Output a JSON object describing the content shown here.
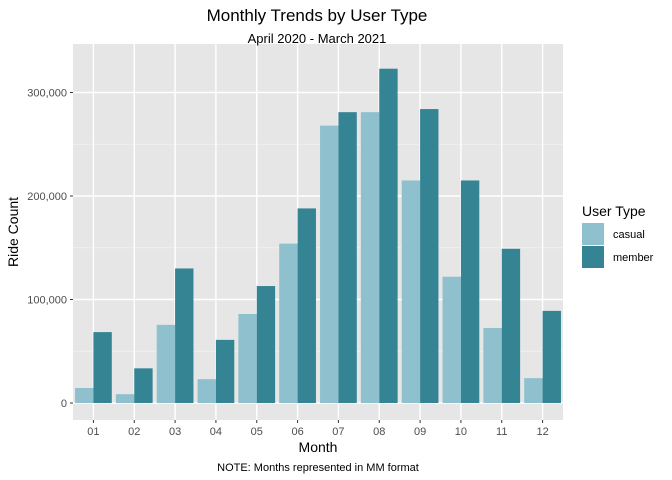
{
  "chart_data": {
    "type": "bar",
    "title": "Monthly Trends by User Type",
    "subtitle": "April 2020 - March 2021",
    "xlabel": "Month",
    "ylabel": "Ride Count",
    "caption": "NOTE: Months represented in MM format",
    "categories": [
      "01",
      "02",
      "03",
      "04",
      "05",
      "06",
      "07",
      "08",
      "09",
      "10",
      "11",
      "12"
    ],
    "ylim": [
      0,
      340000
    ],
    "yticks": [
      0,
      100000,
      200000,
      300000
    ],
    "ytick_labels": [
      "0",
      "100,000",
      "200,000",
      "300,000"
    ],
    "grid": true,
    "legend": {
      "title": "User Type",
      "position": "right"
    },
    "series": [
      {
        "name": "casual",
        "color": "#8ec0cd",
        "values": [
          14500,
          8500,
          75500,
          23000,
          86000,
          154000,
          268000,
          281000,
          215000,
          122000,
          72500,
          24000
        ]
      },
      {
        "name": "member",
        "color": "#358493",
        "values": [
          68500,
          33500,
          130000,
          61000,
          113000,
          188000,
          281000,
          323000,
          284000,
          215000,
          149000,
          89000
        ]
      }
    ]
  }
}
